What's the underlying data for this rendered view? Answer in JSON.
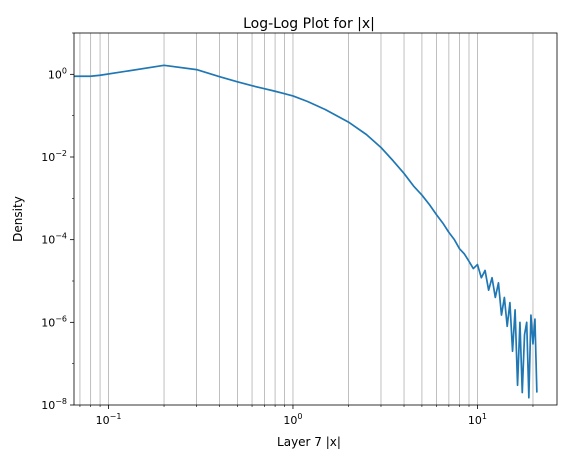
{
  "chart_data": {
    "type": "line",
    "title": "Log-Log Plot for |x|",
    "xlabel": "Layer 7 |x|",
    "ylabel": "Density",
    "x_scale": "log",
    "y_scale": "log",
    "xlim": [
      0.065,
      27
    ],
    "ylim": [
      1e-08,
      10
    ],
    "x_ticks": [
      {
        "value": 0.1,
        "base": "10",
        "exp": "−1"
      },
      {
        "value": 1,
        "base": "10",
        "exp": "0"
      },
      {
        "value": 10,
        "base": "10",
        "exp": "1"
      }
    ],
    "y_ticks": [
      {
        "value": 1e-08,
        "base": "10",
        "exp": "−8"
      },
      {
        "value": 1e-06,
        "base": "10",
        "exp": "−6"
      },
      {
        "value": 0.0001,
        "base": "10",
        "exp": "−4"
      },
      {
        "value": 0.01,
        "base": "10",
        "exp": "−2"
      },
      {
        "value": 1,
        "base": "10",
        "exp": "0"
      }
    ],
    "grid": {
      "axis": "x",
      "which": "both"
    },
    "series": [
      {
        "color": "#1f77b4",
        "x": [
          0.065,
          0.08,
          0.09,
          0.2,
          0.3,
          0.4,
          0.5,
          0.6,
          0.7,
          0.8,
          0.9,
          1.0,
          1.2,
          1.5,
          2.0,
          2.5,
          3.0,
          3.5,
          4.0,
          4.5,
          5.0,
          5.5,
          6.0,
          6.5,
          7.0,
          7.5,
          8.0,
          8.5,
          9.0,
          9.5,
          10.0,
          10.5,
          11.0,
          11.5,
          12.0,
          12.5,
          13.0,
          13.5,
          14.0,
          14.5,
          15.0,
          15.5,
          16.0,
          16.5,
          17.0,
          17.5,
          18.0,
          18.5,
          19.0,
          19.5,
          20.0,
          20.5,
          21.0
        ],
        "y": [
          0.9,
          0.9,
          0.95,
          1.65,
          1.3,
          0.88,
          0.66,
          0.53,
          0.45,
          0.39,
          0.34,
          0.3,
          0.22,
          0.14,
          0.07,
          0.035,
          0.017,
          0.008,
          0.004,
          0.002,
          0.0012,
          0.0007,
          0.0004,
          0.00025,
          0.00015,
          0.0001,
          6e-05,
          4.5e-05,
          3e-05,
          2e-05,
          2.5e-05,
          1.2e-05,
          1.8e-05,
          6e-06,
          1.2e-05,
          4e-06,
          9e-06,
          1.5e-06,
          4e-06,
          8e-07,
          3e-06,
          2e-07,
          2e-06,
          3e-08,
          1e-06,
          2e-08,
          5e-07,
          1e-06,
          1.5e-08,
          1.5e-06,
          3e-07,
          1.2e-06,
          2e-08
        ]
      }
    ]
  }
}
